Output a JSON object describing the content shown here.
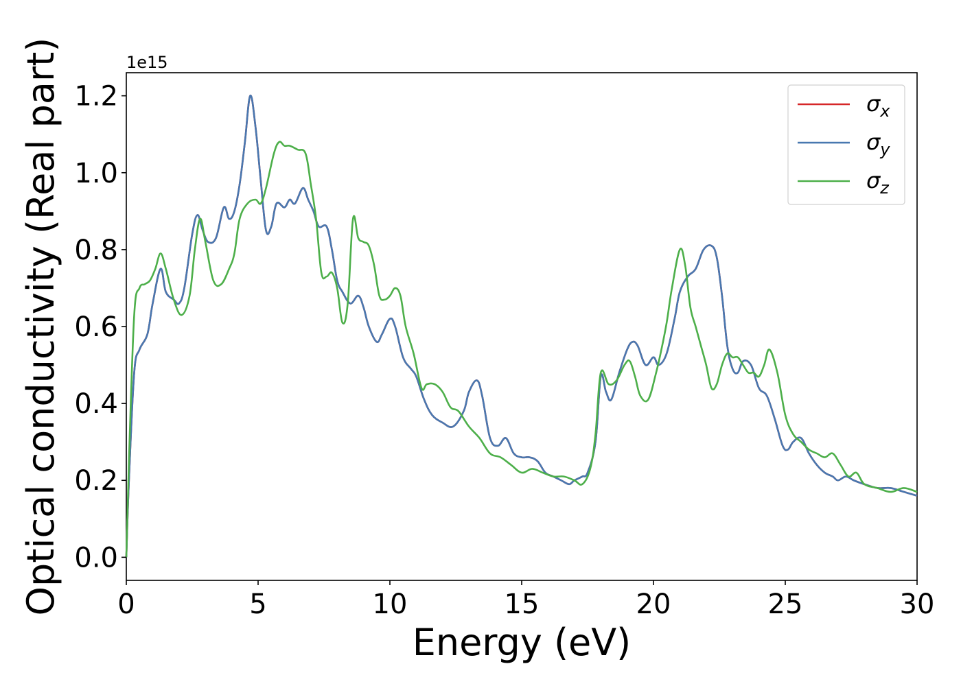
{
  "chart_data": {
    "type": "line",
    "xlabel": "Energy (eV)",
    "ylabel": "Optical conductivity (Real part)",
    "y_offset_label": "1e15",
    "xlim": [
      0,
      30
    ],
    "ylim": [
      -0.06,
      1.26
    ],
    "x_ticks": [
      0,
      5,
      10,
      15,
      20,
      25,
      30
    ],
    "x_tick_labels": [
      "0",
      "5",
      "10",
      "15",
      "20",
      "25",
      "30"
    ],
    "y_ticks": [
      0.0,
      0.2,
      0.4,
      0.6,
      0.8,
      1.0,
      1.2
    ],
    "y_tick_labels": [
      "0.0",
      "0.2",
      "0.4",
      "0.6",
      "0.8",
      "1.0",
      "1.2"
    ],
    "grid": false,
    "legend_position": "top-right",
    "series": [
      {
        "name": "σ",
        "subscript": "x",
        "color": "#d62728",
        "x": [
          0,
          0.1,
          0.3,
          0.5,
          0.8,
          1.0,
          1.3,
          1.5,
          1.8,
          2.0,
          2.2,
          2.5,
          2.7,
          2.9,
          3.1,
          3.4,
          3.7,
          3.9,
          4.1,
          4.3,
          4.5,
          4.7,
          4.9,
          5.1,
          5.3,
          5.5,
          5.7,
          6.0,
          6.2,
          6.4,
          6.7,
          6.9,
          7.1,
          7.3,
          7.6,
          7.8,
          8.0,
          8.2,
          8.5,
          8.8,
          9.0,
          9.2,
          9.5,
          9.7,
          10.0,
          10.2,
          10.5,
          10.8,
          11.0,
          11.3,
          11.6,
          12.0,
          12.4,
          12.8,
          13.0,
          13.3,
          13.5,
          13.8,
          14.1,
          14.4,
          14.7,
          15.0,
          15.3,
          15.6,
          15.9,
          16.2,
          16.5,
          16.8,
          17.0,
          17.3,
          17.5,
          17.8,
          18.0,
          18.2,
          18.4,
          18.7,
          19.0,
          19.2,
          19.4,
          19.7,
          20.0,
          20.2,
          20.5,
          20.8,
          21.0,
          21.3,
          21.6,
          21.9,
          22.2,
          22.4,
          22.6,
          22.8,
          23.0,
          23.2,
          23.4,
          23.7,
          24.0,
          24.3,
          24.6,
          24.9,
          25.1,
          25.3,
          25.6,
          25.9,
          26.2,
          26.5,
          26.8,
          27.0,
          27.3,
          27.6,
          28.0,
          28.5,
          29.0,
          29.5,
          30.0
        ],
        "values": [
          0.0,
          0.2,
          0.48,
          0.54,
          0.58,
          0.66,
          0.75,
          0.69,
          0.67,
          0.66,
          0.7,
          0.84,
          0.89,
          0.85,
          0.82,
          0.83,
          0.91,
          0.88,
          0.9,
          0.97,
          1.08,
          1.2,
          1.12,
          0.98,
          0.85,
          0.86,
          0.92,
          0.91,
          0.93,
          0.92,
          0.96,
          0.93,
          0.9,
          0.86,
          0.86,
          0.8,
          0.72,
          0.69,
          0.66,
          0.68,
          0.65,
          0.6,
          0.56,
          0.58,
          0.62,
          0.6,
          0.52,
          0.49,
          0.47,
          0.41,
          0.37,
          0.35,
          0.34,
          0.38,
          0.43,
          0.46,
          0.42,
          0.31,
          0.29,
          0.31,
          0.27,
          0.26,
          0.26,
          0.25,
          0.22,
          0.21,
          0.2,
          0.19,
          0.2,
          0.21,
          0.22,
          0.3,
          0.47,
          0.43,
          0.41,
          0.48,
          0.54,
          0.56,
          0.55,
          0.5,
          0.52,
          0.5,
          0.53,
          0.62,
          0.69,
          0.73,
          0.75,
          0.8,
          0.81,
          0.78,
          0.68,
          0.55,
          0.49,
          0.48,
          0.51,
          0.5,
          0.44,
          0.42,
          0.36,
          0.29,
          0.28,
          0.3,
          0.31,
          0.27,
          0.24,
          0.22,
          0.21,
          0.2,
          0.21,
          0.2,
          0.19,
          0.18,
          0.18,
          0.17,
          0.16
        ]
      },
      {
        "name": "σ",
        "subscript": "y",
        "color": "#4878b0",
        "x": [
          0,
          0.1,
          0.3,
          0.5,
          0.8,
          1.0,
          1.3,
          1.5,
          1.8,
          2.0,
          2.2,
          2.5,
          2.7,
          2.9,
          3.1,
          3.4,
          3.7,
          3.9,
          4.1,
          4.3,
          4.5,
          4.7,
          4.9,
          5.1,
          5.3,
          5.5,
          5.7,
          6.0,
          6.2,
          6.4,
          6.7,
          6.9,
          7.1,
          7.3,
          7.6,
          7.8,
          8.0,
          8.2,
          8.5,
          8.8,
          9.0,
          9.2,
          9.5,
          9.7,
          10.0,
          10.2,
          10.5,
          10.8,
          11.0,
          11.3,
          11.6,
          12.0,
          12.4,
          12.8,
          13.0,
          13.3,
          13.5,
          13.8,
          14.1,
          14.4,
          14.7,
          15.0,
          15.3,
          15.6,
          15.9,
          16.2,
          16.5,
          16.8,
          17.0,
          17.3,
          17.5,
          17.8,
          18.0,
          18.2,
          18.4,
          18.7,
          19.0,
          19.2,
          19.4,
          19.7,
          20.0,
          20.2,
          20.5,
          20.8,
          21.0,
          21.3,
          21.6,
          21.9,
          22.2,
          22.4,
          22.6,
          22.8,
          23.0,
          23.2,
          23.4,
          23.7,
          24.0,
          24.3,
          24.6,
          24.9,
          25.1,
          25.3,
          25.6,
          25.9,
          26.2,
          26.5,
          26.8,
          27.0,
          27.3,
          27.6,
          28.0,
          28.5,
          29.0,
          29.5,
          30.0
        ],
        "values": [
          0.0,
          0.2,
          0.48,
          0.54,
          0.58,
          0.66,
          0.75,
          0.69,
          0.67,
          0.66,
          0.7,
          0.84,
          0.89,
          0.85,
          0.82,
          0.83,
          0.91,
          0.88,
          0.9,
          0.97,
          1.08,
          1.2,
          1.12,
          0.98,
          0.85,
          0.86,
          0.92,
          0.91,
          0.93,
          0.92,
          0.96,
          0.93,
          0.9,
          0.86,
          0.86,
          0.8,
          0.72,
          0.69,
          0.66,
          0.68,
          0.65,
          0.6,
          0.56,
          0.58,
          0.62,
          0.6,
          0.52,
          0.49,
          0.47,
          0.41,
          0.37,
          0.35,
          0.34,
          0.38,
          0.43,
          0.46,
          0.42,
          0.31,
          0.29,
          0.31,
          0.27,
          0.26,
          0.26,
          0.25,
          0.22,
          0.21,
          0.2,
          0.19,
          0.2,
          0.21,
          0.22,
          0.3,
          0.47,
          0.43,
          0.41,
          0.48,
          0.54,
          0.56,
          0.55,
          0.5,
          0.52,
          0.5,
          0.53,
          0.62,
          0.69,
          0.73,
          0.75,
          0.8,
          0.81,
          0.78,
          0.68,
          0.55,
          0.49,
          0.48,
          0.51,
          0.5,
          0.44,
          0.42,
          0.36,
          0.29,
          0.28,
          0.3,
          0.31,
          0.27,
          0.24,
          0.22,
          0.21,
          0.2,
          0.21,
          0.2,
          0.19,
          0.18,
          0.18,
          0.17,
          0.16
        ]
      },
      {
        "name": "σ",
        "subscript": "z",
        "color": "#4daf4a",
        "x": [
          0,
          0.1,
          0.3,
          0.5,
          0.7,
          0.9,
          1.1,
          1.3,
          1.5,
          1.8,
          2.1,
          2.4,
          2.6,
          2.8,
          3.0,
          3.3,
          3.6,
          3.9,
          4.1,
          4.3,
          4.6,
          4.9,
          5.1,
          5.3,
          5.6,
          5.8,
          6.0,
          6.2,
          6.5,
          6.8,
          7.0,
          7.2,
          7.4,
          7.6,
          7.8,
          8.0,
          8.2,
          8.4,
          8.6,
          8.8,
          9.0,
          9.2,
          9.4,
          9.6,
          9.8,
          10.0,
          10.2,
          10.4,
          10.6,
          10.9,
          11.2,
          11.4,
          11.7,
          12.0,
          12.3,
          12.6,
          13.0,
          13.4,
          13.8,
          14.2,
          14.6,
          15.0,
          15.4,
          15.8,
          16.2,
          16.6,
          17.0,
          17.3,
          17.6,
          17.8,
          18.0,
          18.3,
          18.6,
          18.9,
          19.1,
          19.3,
          19.5,
          19.8,
          20.1,
          20.3,
          20.5,
          20.7,
          21.0,
          21.2,
          21.4,
          21.6,
          21.8,
          22.0,
          22.2,
          22.4,
          22.6,
          22.8,
          23.0,
          23.2,
          23.4,
          23.6,
          23.8,
          24.0,
          24.2,
          24.4,
          24.7,
          25.0,
          25.3,
          25.6,
          25.9,
          26.2,
          26.5,
          26.8,
          27.1,
          27.4,
          27.7,
          28.0,
          28.5,
          29.0,
          29.5,
          30.0
        ],
        "values": [
          0.0,
          0.25,
          0.63,
          0.7,
          0.71,
          0.72,
          0.75,
          0.79,
          0.75,
          0.67,
          0.63,
          0.68,
          0.8,
          0.88,
          0.82,
          0.72,
          0.71,
          0.75,
          0.79,
          0.88,
          0.92,
          0.93,
          0.92,
          0.96,
          1.05,
          1.08,
          1.07,
          1.07,
          1.06,
          1.05,
          0.97,
          0.88,
          0.74,
          0.73,
          0.74,
          0.7,
          0.61,
          0.66,
          0.88,
          0.83,
          0.82,
          0.81,
          0.76,
          0.68,
          0.67,
          0.68,
          0.7,
          0.68,
          0.6,
          0.53,
          0.44,
          0.45,
          0.45,
          0.43,
          0.39,
          0.38,
          0.34,
          0.31,
          0.27,
          0.26,
          0.24,
          0.22,
          0.23,
          0.22,
          0.21,
          0.21,
          0.2,
          0.19,
          0.23,
          0.32,
          0.48,
          0.45,
          0.46,
          0.5,
          0.51,
          0.47,
          0.42,
          0.41,
          0.48,
          0.54,
          0.61,
          0.7,
          0.8,
          0.76,
          0.65,
          0.6,
          0.55,
          0.5,
          0.44,
          0.45,
          0.5,
          0.53,
          0.52,
          0.52,
          0.5,
          0.48,
          0.48,
          0.47,
          0.5,
          0.54,
          0.48,
          0.37,
          0.32,
          0.3,
          0.28,
          0.27,
          0.26,
          0.27,
          0.24,
          0.21,
          0.22,
          0.19,
          0.18,
          0.17,
          0.18,
          0.17
        ]
      }
    ]
  }
}
